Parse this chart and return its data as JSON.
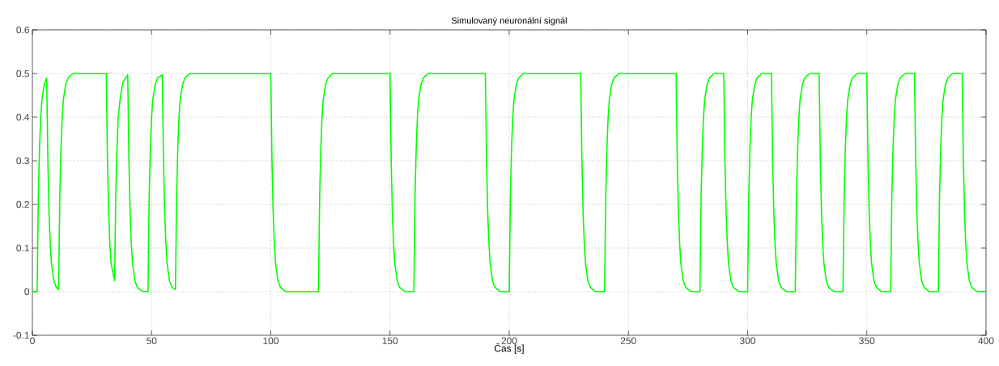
{
  "chart_data": {
    "type": "line",
    "title": "Simulovaný neuronální signál",
    "xlabel": "Čas [s]",
    "series": [
      {
        "color": "#00ff00",
        "x": [
          0,
          2,
          2.5,
          3,
          3.5,
          4,
          5,
          6,
          6.5,
          7,
          7.5,
          8,
          9,
          10,
          11,
          11.5,
          12,
          12.5,
          13,
          14,
          15,
          17,
          31,
          31.5,
          32,
          32.5,
          33,
          34.5,
          35,
          35.5,
          36,
          37,
          38,
          40,
          40.5,
          41,
          41.5,
          42,
          43,
          44,
          46,
          48.5,
          49,
          49.5,
          50,
          50.5,
          51.5,
          52.5,
          54.5,
          55,
          55.5,
          56,
          56.5,
          57.5,
          58.5,
          60,
          60.5,
          61,
          61.5,
          62,
          63,
          64,
          66,
          100,
          100.5,
          101,
          101.5,
          102,
          103,
          104,
          106,
          107,
          120,
          120.5,
          121,
          121.5,
          122,
          123,
          124,
          126,
          150,
          150.5,
          151,
          151.5,
          152,
          153,
          154,
          156,
          157,
          160,
          160.5,
          161,
          161.5,
          162,
          163,
          164,
          166,
          190,
          190.5,
          191,
          191.5,
          192,
          193,
          194,
          196,
          197,
          200,
          200.5,
          201,
          201.5,
          202,
          203,
          204,
          206,
          230,
          230.5,
          231,
          231.5,
          232,
          233,
          234,
          236,
          237,
          240,
          240.5,
          241,
          241.5,
          242,
          243,
          244,
          246,
          270,
          270.5,
          271,
          271.5,
          272,
          273,
          274,
          276,
          277,
          280,
          280.5,
          281,
          281.5,
          282,
          283,
          284,
          286,
          290,
          290.5,
          291,
          291.5,
          292,
          293,
          294,
          296,
          297,
          300,
          300.5,
          301,
          301.5,
          302,
          303,
          304,
          306,
          310,
          310.5,
          311,
          311.5,
          312,
          313,
          314,
          316,
          317,
          320,
          320.5,
          321,
          321.5,
          322,
          323,
          324,
          326,
          330,
          330.5,
          331,
          331.5,
          332,
          333,
          334,
          336,
          337,
          340,
          340.5,
          341,
          341.5,
          342,
          343,
          344,
          346,
          350,
          350.5,
          351,
          351.5,
          352,
          353,
          354,
          356,
          357,
          360,
          360.5,
          361,
          361.5,
          362,
          363,
          364,
          366,
          370,
          370.5,
          371,
          371.5,
          372,
          373,
          374,
          376,
          377,
          380,
          380.5,
          381,
          381.5,
          382,
          383,
          384,
          386,
          390,
          390.5,
          391,
          391.5,
          392,
          393,
          394,
          396,
          397,
          400
        ],
        "values": [
          0,
          0,
          0.22,
          0.33,
          0.4,
          0.44,
          0.475,
          0.49,
          0.3,
          0.18,
          0.11,
          0.065,
          0.025,
          0.01,
          0.005,
          0.22,
          0.33,
          0.4,
          0.44,
          0.475,
          0.49,
          0.5,
          0.5,
          0.3,
          0.18,
          0.11,
          0.065,
          0.025,
          0.23,
          0.33,
          0.4,
          0.45,
          0.48,
          0.497,
          0.3,
          0.18,
          0.11,
          0.065,
          0.025,
          0.01,
          0.001,
          0,
          0.22,
          0.33,
          0.4,
          0.44,
          0.475,
          0.49,
          0.497,
          0.3,
          0.18,
          0.11,
          0.065,
          0.025,
          0.01,
          0.005,
          0.22,
          0.33,
          0.4,
          0.44,
          0.475,
          0.49,
          0.5,
          0.5,
          0.3,
          0.18,
          0.11,
          0.065,
          0.025,
          0.01,
          0.001,
          0,
          0,
          0.22,
          0.33,
          0.4,
          0.44,
          0.475,
          0.49,
          0.5,
          0.5,
          0.3,
          0.18,
          0.11,
          0.065,
          0.025,
          0.01,
          0.001,
          0,
          0,
          0.22,
          0.33,
          0.4,
          0.44,
          0.475,
          0.49,
          0.5,
          0.5,
          0.3,
          0.18,
          0.11,
          0.065,
          0.025,
          0.01,
          0.001,
          0,
          0,
          0.22,
          0.33,
          0.4,
          0.44,
          0.475,
          0.49,
          0.5,
          0.5,
          0.3,
          0.18,
          0.11,
          0.065,
          0.025,
          0.01,
          0.001,
          0,
          0,
          0.22,
          0.33,
          0.4,
          0.44,
          0.475,
          0.49,
          0.5,
          0.5,
          0.3,
          0.18,
          0.11,
          0.065,
          0.025,
          0.01,
          0.001,
          0,
          0,
          0.22,
          0.33,
          0.4,
          0.44,
          0.475,
          0.49,
          0.5,
          0.5,
          0.3,
          0.18,
          0.11,
          0.065,
          0.025,
          0.01,
          0.001,
          0,
          0,
          0.22,
          0.33,
          0.4,
          0.44,
          0.475,
          0.49,
          0.5,
          0.5,
          0.3,
          0.18,
          0.11,
          0.065,
          0.025,
          0.01,
          0.001,
          0,
          0,
          0.22,
          0.33,
          0.4,
          0.44,
          0.475,
          0.49,
          0.5,
          0.5,
          0.3,
          0.18,
          0.11,
          0.065,
          0.025,
          0.01,
          0.001,
          0,
          0,
          0.22,
          0.33,
          0.4,
          0.44,
          0.475,
          0.49,
          0.5,
          0.5,
          0.3,
          0.18,
          0.11,
          0.065,
          0.025,
          0.01,
          0.001,
          0,
          0,
          0.22,
          0.33,
          0.4,
          0.44,
          0.475,
          0.49,
          0.5,
          0.5,
          0.3,
          0.18,
          0.11,
          0.065,
          0.025,
          0.01,
          0.001,
          0,
          0,
          0.22,
          0.33,
          0.4,
          0.44,
          0.475,
          0.49,
          0.5,
          0.5,
          0.3,
          0.18,
          0.11,
          0.065,
          0.025,
          0.01,
          0.001,
          0,
          0
        ]
      }
    ],
    "xlim": [
      0,
      400
    ],
    "ylim": [
      -0.1,
      0.6
    ],
    "xticks": [
      0,
      50,
      100,
      150,
      200,
      250,
      300,
      350,
      400
    ],
    "yticks": [
      -0.1,
      0,
      0.1,
      0.2,
      0.3,
      0.4,
      0.5,
      0.6
    ],
    "grid": true
  }
}
